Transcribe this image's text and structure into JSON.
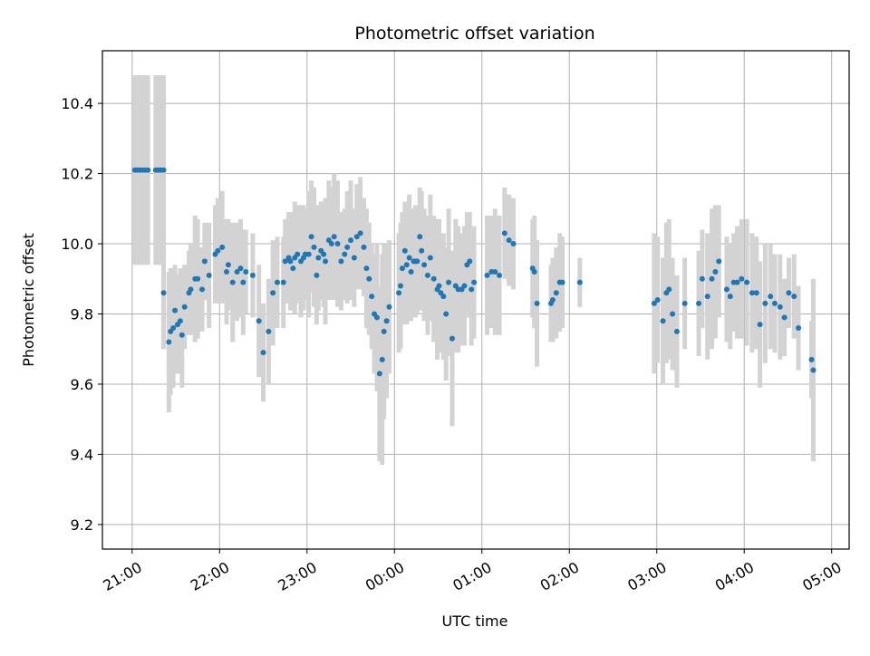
{
  "chart_data": {
    "type": "scatter",
    "title": "Photometric offset variation",
    "xlabel": "UTC time",
    "ylabel": "Photometric offset",
    "x_unit": "hours after 21:00 UTC",
    "xlim": [
      -0.34,
      8.2
    ],
    "ylim": [
      9.13,
      10.55
    ],
    "grid": true,
    "legend": "none",
    "colors": {
      "point": "#1f77b4",
      "errorbar": "#d3d3d3",
      "grid": "#b0b0b0",
      "axes": "#000000"
    },
    "x_ticks": [
      {
        "v": 0,
        "label": "21:00"
      },
      {
        "v": 1,
        "label": "22:00"
      },
      {
        "v": 2,
        "label": "23:00"
      },
      {
        "v": 3,
        "label": "00:00"
      },
      {
        "v": 4,
        "label": "01:00"
      },
      {
        "v": 5,
        "label": "02:00"
      },
      {
        "v": 6,
        "label": "03:00"
      },
      {
        "v": 7,
        "label": "04:00"
      },
      {
        "v": 8,
        "label": "05:00"
      }
    ],
    "y_ticks": [
      {
        "v": 9.2,
        "label": "9.2"
      },
      {
        "v": 9.4,
        "label": "9.4"
      },
      {
        "v": 9.6,
        "label": "9.6"
      },
      {
        "v": 9.8,
        "label": "9.8"
      },
      {
        "v": 10.0,
        "label": "10.0"
      },
      {
        "v": 10.2,
        "label": "10.2"
      },
      {
        "v": 10.4,
        "label": "10.4"
      }
    ],
    "series": [
      {
        "name": "Photometric offset",
        "x": [
          0.03,
          0.06,
          0.09,
          0.12,
          0.15,
          0.18,
          0.27,
          0.3,
          0.33,
          0.36,
          0.36,
          0.42,
          0.44,
          0.47,
          0.49,
          0.52,
          0.55,
          0.57,
          0.6,
          0.65,
          0.67,
          0.72,
          0.75,
          0.8,
          0.83,
          0.88,
          0.95,
          0.98,
          1.03,
          1.08,
          1.1,
          1.15,
          1.2,
          1.24,
          1.27,
          1.3,
          1.38,
          1.45,
          1.5,
          1.56,
          1.61,
          1.66,
          1.73,
          1.75,
          1.79,
          1.81,
          1.84,
          1.86,
          1.89,
          1.93,
          1.96,
          1.98,
          2.02,
          2.05,
          2.08,
          2.11,
          2.13,
          2.16,
          2.19,
          2.21,
          2.25,
          2.28,
          2.31,
          2.35,
          2.39,
          2.43,
          2.46,
          2.5,
          2.54,
          2.57,
          2.61,
          2.65,
          2.68,
          2.71,
          2.74,
          2.77,
          2.8,
          2.83,
          2.86,
          2.88,
          2.91,
          2.94,
          3.05,
          3.07,
          3.09,
          3.12,
          3.14,
          3.17,
          3.19,
          3.22,
          3.24,
          3.26,
          3.29,
          3.31,
          3.34,
          3.38,
          3.41,
          3.45,
          3.49,
          3.51,
          3.53,
          3.56,
          3.59,
          3.62,
          3.66,
          3.7,
          3.73,
          3.77,
          3.8,
          3.83,
          3.86,
          3.88,
          3.91,
          4.06,
          4.11,
          4.15,
          4.2,
          4.26,
          4.31,
          4.36,
          4.58,
          4.6,
          4.63,
          4.79,
          4.81,
          4.85,
          4.89,
          4.92,
          5.12,
          5.97,
          6.01,
          6.07,
          6.11,
          6.14,
          6.18,
          6.23,
          6.32,
          6.48,
          6.52,
          6.58,
          6.63,
          6.67,
          6.71,
          6.8,
          6.84,
          6.88,
          6.92,
          6.97,
          7.03,
          7.09,
          7.14,
          7.18,
          7.24,
          7.3,
          7.35,
          7.41,
          7.46,
          7.51,
          7.57,
          7.62,
          7.77,
          7.79
        ],
        "y": [
          10.21,
          10.21,
          10.21,
          10.21,
          10.21,
          10.21,
          10.21,
          10.21,
          10.21,
          10.21,
          9.86,
          9.72,
          9.75,
          9.76,
          9.81,
          9.77,
          9.78,
          9.74,
          9.82,
          9.86,
          9.87,
          9.9,
          9.9,
          9.87,
          9.95,
          9.91,
          9.97,
          9.98,
          9.99,
          9.92,
          9.94,
          9.89,
          9.92,
          9.93,
          9.89,
          9.92,
          9.91,
          9.78,
          9.69,
          9.75,
          9.86,
          9.89,
          9.89,
          9.95,
          9.96,
          9.95,
          9.93,
          9.96,
          9.97,
          9.95,
          9.96,
          9.97,
          9.97,
          10.02,
          9.99,
          9.91,
          9.96,
          9.98,
          9.97,
          9.95,
          10.01,
          10.0,
          10.02,
          10.0,
          9.95,
          9.97,
          9.99,
          10.01,
          9.96,
          10.02,
          10.03,
          9.99,
          9.93,
          9.9,
          9.85,
          9.8,
          9.79,
          9.63,
          9.67,
          9.75,
          9.78,
          9.82,
          9.86,
          9.88,
          9.93,
          9.98,
          9.94,
          9.96,
          9.92,
          9.95,
          9.95,
          9.95,
          10.02,
          9.98,
          9.94,
          9.91,
          9.96,
          9.9,
          9.87,
          9.88,
          9.86,
          9.85,
          9.8,
          9.89,
          9.73,
          9.88,
          9.87,
          9.87,
          9.88,
          9.94,
          9.95,
          9.87,
          9.89,
          9.91,
          9.92,
          9.92,
          9.91,
          10.03,
          10.01,
          10.0,
          9.93,
          9.92,
          9.83,
          9.83,
          9.84,
          9.86,
          9.89,
          9.89,
          9.89,
          9.83,
          9.84,
          9.78,
          9.86,
          9.87,
          9.8,
          9.75,
          9.83,
          9.83,
          9.9,
          9.85,
          9.9,
          9.92,
          9.95,
          9.87,
          9.85,
          9.89,
          9.89,
          9.9,
          9.89,
          9.86,
          9.86,
          9.77,
          9.83,
          9.85,
          9.83,
          9.82,
          9.79,
          9.86,
          9.85,
          9.76,
          9.67,
          9.64
        ],
        "err": [
          0.27,
          0.27,
          0.27,
          0.27,
          0.27,
          0.27,
          0.27,
          0.27,
          0.27,
          0.27,
          0.16,
          0.2,
          0.18,
          0.17,
          0.13,
          0.14,
          0.15,
          0.15,
          0.12,
          0.12,
          0.13,
          0.18,
          0.17,
          0.12,
          0.11,
          0.15,
          0.14,
          0.15,
          0.16,
          0.15,
          0.13,
          0.17,
          0.14,
          0.14,
          0.15,
          0.12,
          0.12,
          0.16,
          0.14,
          0.15,
          0.15,
          0.13,
          0.13,
          0.12,
          0.13,
          0.14,
          0.12,
          0.16,
          0.14,
          0.16,
          0.15,
          0.13,
          0.18,
          0.16,
          0.17,
          0.14,
          0.15,
          0.14,
          0.15,
          0.18,
          0.17,
          0.16,
          0.18,
          0.18,
          0.14,
          0.13,
          0.16,
          0.17,
          0.14,
          0.15,
          0.16,
          0.14,
          0.17,
          0.16,
          0.15,
          0.17,
          0.21,
          0.25,
          0.3,
          0.25,
          0.22,
          0.19,
          0.17,
          0.18,
          0.16,
          0.14,
          0.17,
          0.18,
          0.14,
          0.15,
          0.16,
          0.15,
          0.14,
          0.17,
          0.16,
          0.17,
          0.18,
          0.18,
          0.2,
          0.19,
          0.17,
          0.18,
          0.19,
          0.21,
          0.25,
          0.19,
          0.18,
          0.16,
          0.17,
          0.15,
          0.14,
          0.16,
          0.16,
          0.17,
          0.16,
          0.18,
          0.17,
          0.13,
          0.13,
          0.13,
          0.14,
          0.16,
          0.18,
          0.11,
          0.12,
          0.13,
          0.14,
          0.13,
          0.07,
          0.2,
          0.18,
          0.18,
          0.2,
          0.2,
          0.16,
          0.16,
          0.13,
          0.15,
          0.14,
          0.18,
          0.2,
          0.19,
          0.16,
          0.15,
          0.15,
          0.14,
          0.16,
          0.17,
          0.18,
          0.17,
          0.16,
          0.18,
          0.17,
          0.15,
          0.14,
          0.15,
          0.11,
          0.1,
          0.12,
          0.12,
          0.11,
          0.26
        ]
      }
    ]
  }
}
